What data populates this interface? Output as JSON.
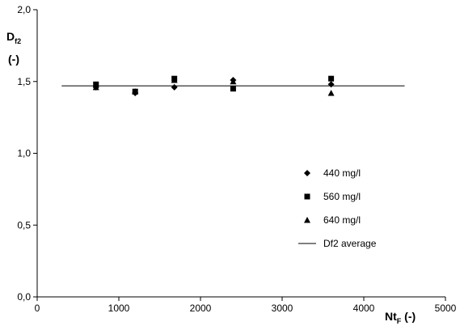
{
  "chart_data": {
    "type": "scatter",
    "title": "",
    "xlabel": {
      "main": "Nt",
      "sub": "F",
      "suffix": " (-)"
    },
    "ylabel": {
      "main": "D",
      "sub": "f2",
      "unit": "(-)"
    },
    "xlim": [
      0,
      5000
    ],
    "ylim": [
      0.0,
      2.0
    ],
    "x_ticks": [
      0,
      1000,
      2000,
      3000,
      4000,
      5000
    ],
    "x_tick_labels": [
      "0",
      "1000",
      "2000",
      "3000",
      "4000",
      "5000"
    ],
    "y_ticks": [
      0.0,
      0.5,
      1.0,
      1.5,
      2.0
    ],
    "y_tick_labels": [
      "0,0",
      "0,5",
      "1,0",
      "1,5",
      "2,0"
    ],
    "grid": false,
    "legend_placement": "lower-right",
    "series": [
      {
        "name": "440 mg/l",
        "marker": "diamond",
        "x": [
          720,
          1200,
          1680,
          2400,
          3600
        ],
        "y": [
          1.46,
          1.42,
          1.46,
          1.51,
          1.48
        ]
      },
      {
        "name": "560 mg/l",
        "marker": "square",
        "x": [
          720,
          1200,
          1680,
          2400,
          3600
        ],
        "y": [
          1.48,
          1.43,
          1.52,
          1.45,
          1.52
        ]
      },
      {
        "name": "640 mg/l",
        "marker": "triangle",
        "x": [
          720,
          1200,
          1680,
          2400,
          3600
        ],
        "y": [
          1.46,
          1.43,
          1.51,
          1.5,
          1.42
        ]
      }
    ],
    "average_line": {
      "name": "Df2 average",
      "y": 1.47,
      "x": [
        300,
        4500
      ]
    },
    "colors": {
      "marker": "#000000",
      "axis": "#000000",
      "line": "#000000"
    }
  }
}
